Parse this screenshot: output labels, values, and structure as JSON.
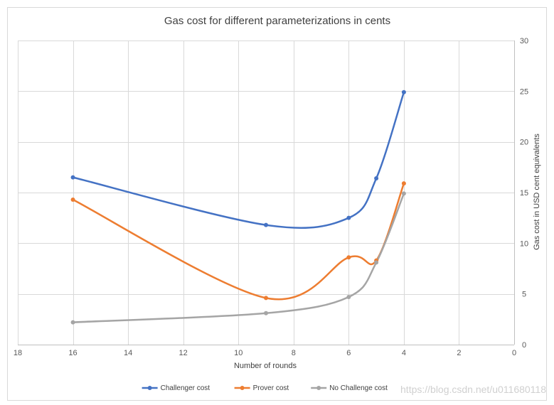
{
  "chart_data": {
    "type": "line",
    "title": "Gas cost  for different parameterizations in cents",
    "xlabel": "Number of rounds",
    "ylabel": "Gas cost in USD cent equivalents",
    "x_reversed": true,
    "xlim": [
      0,
      18
    ],
    "ylim": [
      0,
      30
    ],
    "x_ticks": [
      18,
      16,
      14,
      12,
      10,
      8,
      6,
      4,
      2,
      0
    ],
    "y_ticks": [
      0,
      5,
      10,
      15,
      20,
      25,
      30
    ],
    "y_axis_position": "right",
    "grid": true,
    "legend_position": "bottom",
    "smoothed": true,
    "series": [
      {
        "name": "Challenger cost",
        "color": "#4472c4",
        "x": [
          16,
          9,
          6,
          5,
          4
        ],
        "y": [
          16.5,
          11.8,
          12.5,
          16.4,
          24.9
        ]
      },
      {
        "name": "Prover cost",
        "color": "#ed7d31",
        "x": [
          16,
          9,
          6,
          5,
          4
        ],
        "y": [
          14.3,
          4.6,
          8.6,
          8.3,
          15.9
        ]
      },
      {
        "name": "No Challenge cost",
        "color": "#a5a5a5",
        "x": [
          16,
          9,
          6,
          5,
          4
        ],
        "y": [
          2.2,
          3.1,
          4.7,
          8.1,
          14.9
        ]
      }
    ]
  },
  "watermark": "https://blog.csdn.net/u011680118"
}
